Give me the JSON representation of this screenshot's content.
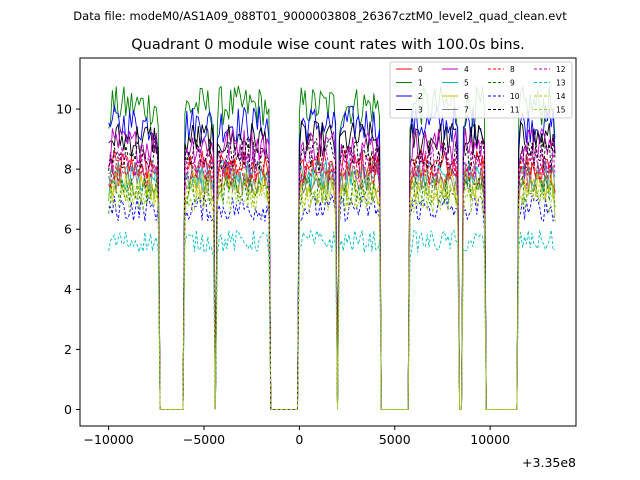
{
  "figure": {
    "suptitle": "Data file: modeM0/AS1A09_088T01_9000003808_26367cztM0_level2_quad_clean.evt"
  },
  "chart_data": {
    "type": "line",
    "title": "Quadrant 0 module wise count rates with 100.0s bins.",
    "xlabel": "",
    "ylabel": "",
    "x_offset_label": "+3.35e8",
    "xlim": [
      -11500,
      14500
    ],
    "ylim": [
      -0.55,
      11.7
    ],
    "x_ticks": [
      -10000,
      -5000,
      0,
      5000,
      10000
    ],
    "x_tick_labels": [
      "−10000",
      "−5000",
      "0",
      "5000",
      "10000"
    ],
    "y_ticks": [
      0,
      2,
      4,
      6,
      8,
      10
    ],
    "y_tick_labels": [
      "0",
      "2",
      "4",
      "6",
      "8",
      "10"
    ],
    "bin_size_s": 100,
    "x_start": -10000,
    "x_end": 13400,
    "segments": [
      [
        -10000,
        -7400
      ],
      [
        -6000,
        -4500
      ],
      [
        -4300,
        -1600
      ],
      [
        0,
        1900
      ],
      [
        2100,
        4200
      ],
      [
        5800,
        8300
      ],
      [
        8600,
        9700
      ],
      [
        11500,
        13400
      ]
    ],
    "series": [
      {
        "name": "0",
        "color": "#ff0000",
        "dashed": false,
        "mean": 8.1
      },
      {
        "name": "1",
        "color": "#008000",
        "dashed": false,
        "mean": 10.1
      },
      {
        "name": "2",
        "color": "#0000ff",
        "dashed": false,
        "mean": 9.5
      },
      {
        "name": "3",
        "color": "#000000",
        "dashed": false,
        "mean": 9.0
      },
      {
        "name": "4",
        "color": "#bf00bf",
        "dashed": false,
        "mean": 8.8
      },
      {
        "name": "5",
        "color": "#00bfbf",
        "dashed": false,
        "mean": 7.8
      },
      {
        "name": "6",
        "color": "#bfbf00",
        "dashed": false,
        "mean": 7.5
      },
      {
        "name": "7",
        "color": "#808080",
        "dashed": false,
        "mean": 7.7
      },
      {
        "name": "8",
        "color": "#ff0000",
        "dashed": true,
        "mean": 7.9
      },
      {
        "name": "9",
        "color": "#008000",
        "dashed": true,
        "mean": 7.3
      },
      {
        "name": "10",
        "color": "#0000ff",
        "dashed": true,
        "mean": 6.7
      },
      {
        "name": "11",
        "color": "#000000",
        "dashed": true,
        "mean": 8.5
      },
      {
        "name": "12",
        "color": "#bf00bf",
        "dashed": true,
        "mean": 8.2
      },
      {
        "name": "13",
        "color": "#00bfbf",
        "dashed": true,
        "mean": 5.6
      },
      {
        "name": "14",
        "color": "#bfbf00",
        "dashed": true,
        "mean": 7.2
      },
      {
        "name": "15",
        "color": "#9acd32",
        "dashed": true,
        "mean": 7.0
      }
    ]
  }
}
